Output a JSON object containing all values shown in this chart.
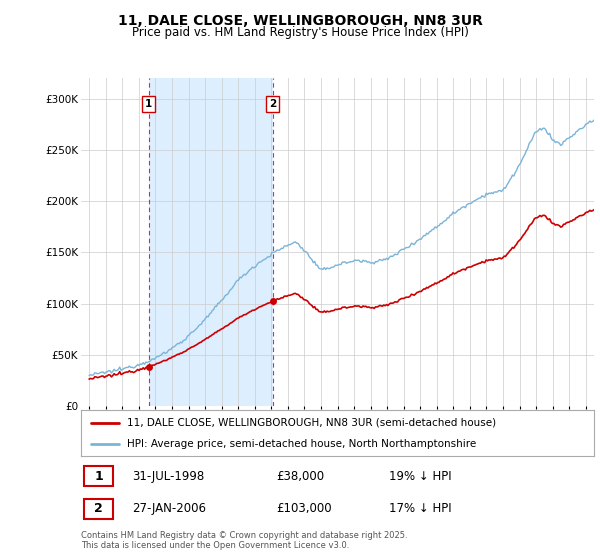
{
  "title": "11, DALE CLOSE, WELLINGBOROUGH, NN8 3UR",
  "subtitle": "Price paid vs. HM Land Registry's House Price Index (HPI)",
  "legend_line1": "11, DALE CLOSE, WELLINGBOROUGH, NN8 3UR (semi-detached house)",
  "legend_line2": "HPI: Average price, semi-detached house, North Northamptonshire",
  "sale1_date": "31-JUL-1998",
  "sale1_price": "£38,000",
  "sale1_hpi": "19% ↓ HPI",
  "sale2_date": "27-JAN-2006",
  "sale2_price": "£103,000",
  "sale2_hpi": "17% ↓ HPI",
  "footer": "Contains HM Land Registry data © Crown copyright and database right 2025.\nThis data is licensed under the Open Government Licence v3.0.",
  "hpi_color": "#7ab4d8",
  "price_color": "#cc0000",
  "shade_color": "#ddeeff",
  "sale_vline_color": "#cc0000",
  "background_color": "#ffffff",
  "grid_color": "#cccccc",
  "ylim": [
    0,
    320000
  ],
  "yticks": [
    0,
    50000,
    100000,
    150000,
    200000,
    250000,
    300000
  ],
  "xlim_start": 1994.5,
  "xlim_end": 2025.5,
  "sale1_year": 1998.58,
  "sale2_year": 2006.08,
  "sale1_price_val": 38000,
  "sale2_price_val": 103000
}
